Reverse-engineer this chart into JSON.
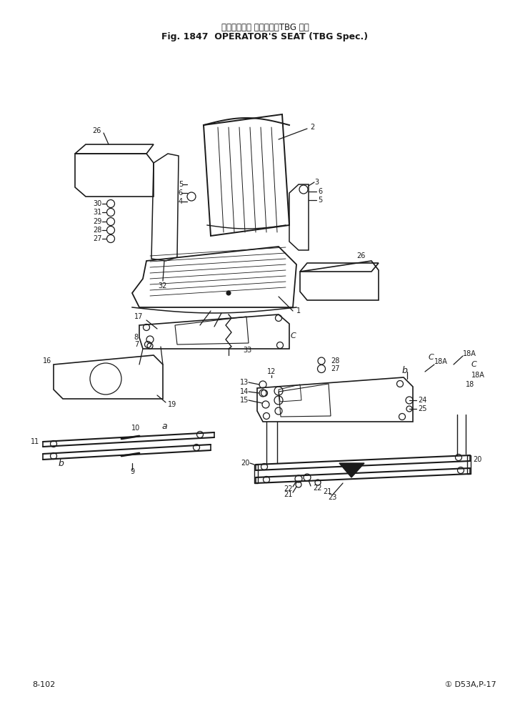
{
  "title_japanese": "オペレータ　 シート　　TBG 仕様",
  "title_english": "Fig. 1847  OPERATOR'S SEAT (TBG Spec.)",
  "footer_left": "8-102",
  "footer_right": "① D53A,P-17",
  "bg_color": "#ffffff",
  "line_color": "#1a1a1a",
  "text_color": "#1a1a1a",
  "figsize": [
    7.42,
    9.85
  ],
  "dpi": 100
}
